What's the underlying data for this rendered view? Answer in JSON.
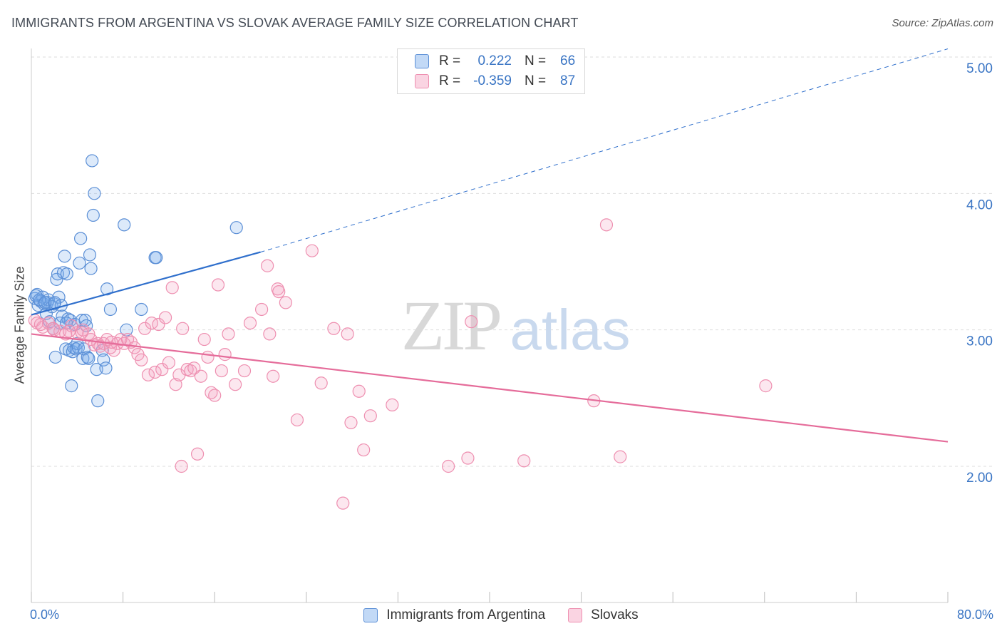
{
  "title": "IMMIGRANTS FROM ARGENTINA VS SLOVAK AVERAGE FAMILY SIZE CORRELATION CHART",
  "source": "Source: ZipAtlas.com",
  "watermark": {
    "zip": "ZIP",
    "atlas": "atlas"
  },
  "legend": {
    "rows": [
      {
        "r_label": "R =",
        "r_value": "0.222",
        "n_label": "N =",
        "n_value": "66"
      },
      {
        "r_label": "R =",
        "r_value": "-0.359",
        "n_label": "N =",
        "n_value": "87"
      }
    ]
  },
  "colors": {
    "blue_fill": "rgba(120,170,235,0.25)",
    "blue_stroke": "#5b8fd6",
    "blue_line": "#2f6fcc",
    "pink_fill": "rgba(245,160,190,0.25)",
    "pink_stroke": "#ee8fb0",
    "pink_line": "#e56c9a",
    "axis_text": "#3a75c4",
    "grid": "#dddddd"
  },
  "chart_data": {
    "type": "scatter",
    "title": "IMMIGRANTS FROM ARGENTINA VS SLOVAK AVERAGE FAMILY SIZE CORRELATION CHART",
    "xlabel": "",
    "ylabel": "Average Family Size",
    "xlim": [
      0,
      80
    ],
    "ylim": [
      1.0,
      5.15
    ],
    "x_tick_labels": [
      "0.0%",
      "80.0%"
    ],
    "y_ticks": [
      2.0,
      3.0,
      4.0,
      5.0
    ],
    "y_tick_labels": [
      "2.00",
      "3.00",
      "4.00",
      "5.00"
    ],
    "grid": "horizontal dashed",
    "legend_placement": "top-center",
    "series": [
      {
        "name": "Immigrants from Argentina",
        "color": "#5b8fd6",
        "r": 0.222,
        "n": 66,
        "trend": {
          "x": [
            0,
            20
          ],
          "y": [
            3.11,
            3.57
          ],
          "extend_to_x": 80,
          "extend_to_y": 5.06
        },
        "points": [
          [
            0.3,
            3.23
          ],
          [
            0.5,
            3.26
          ],
          [
            0.6,
            3.18
          ],
          [
            0.8,
            3.21
          ],
          [
            1.0,
            3.24
          ],
          [
            1.1,
            3.19
          ],
          [
            1.3,
            3.12
          ],
          [
            1.4,
            3.2
          ],
          [
            1.5,
            3.22
          ],
          [
            1.6,
            3.06
          ],
          [
            1.8,
            3.17
          ],
          [
            1.9,
            3.01
          ],
          [
            2.0,
            3.19
          ],
          [
            2.1,
            2.8
          ],
          [
            2.2,
            3.37
          ],
          [
            2.3,
            3.41
          ],
          [
            2.4,
            3.24
          ],
          [
            2.5,
            3.05
          ],
          [
            2.6,
            3.18
          ],
          [
            2.7,
            3.1
          ],
          [
            2.8,
            3.42
          ],
          [
            2.9,
            3.54
          ],
          [
            3.0,
            2.86
          ],
          [
            3.1,
            3.41
          ],
          [
            3.2,
            3.08
          ],
          [
            3.3,
            2.85
          ],
          [
            3.4,
            3.07
          ],
          [
            3.5,
            2.59
          ],
          [
            3.6,
            2.84
          ],
          [
            3.7,
            2.87
          ],
          [
            3.8,
            3.04
          ],
          [
            3.9,
            2.86
          ],
          [
            4.0,
            2.9
          ],
          [
            4.1,
            2.87
          ],
          [
            4.2,
            3.49
          ],
          [
            4.3,
            3.67
          ],
          [
            4.4,
            3.07
          ],
          [
            4.5,
            2.79
          ],
          [
            4.6,
            2.86
          ],
          [
            4.7,
            3.07
          ],
          [
            4.8,
            3.03
          ],
          [
            4.9,
            2.8
          ],
          [
            5.0,
            2.79
          ],
          [
            5.1,
            3.55
          ],
          [
            5.2,
            3.45
          ],
          [
            5.3,
            4.24
          ],
          [
            5.4,
            3.84
          ],
          [
            5.5,
            4.0
          ],
          [
            5.7,
            2.71
          ],
          [
            5.8,
            2.48
          ],
          [
            6.2,
            2.85
          ],
          [
            6.3,
            2.78
          ],
          [
            6.5,
            2.72
          ],
          [
            6.6,
            3.3
          ],
          [
            6.9,
            3.15
          ],
          [
            8.1,
            3.77
          ],
          [
            8.3,
            3.0
          ],
          [
            9.6,
            3.15
          ],
          [
            10.8,
            3.53
          ],
          [
            10.9,
            3.53
          ],
          [
            17.9,
            3.75
          ],
          [
            0.4,
            3.25
          ],
          [
            0.7,
            3.22
          ],
          [
            1.2,
            3.2
          ],
          [
            2.05,
            3.2
          ],
          [
            3.05,
            3.05
          ]
        ]
      },
      {
        "name": "Slovaks",
        "color": "#ee8fb0",
        "r": -0.359,
        "n": 87,
        "trend": {
          "x": [
            0,
            80
          ],
          "y": [
            2.97,
            2.18
          ]
        },
        "points": [
          [
            0.3,
            3.07
          ],
          [
            0.5,
            3.05
          ],
          [
            1.0,
            3.02
          ],
          [
            1.5,
            3.05
          ],
          [
            2.0,
            3.0
          ],
          [
            2.5,
            2.99
          ],
          [
            3.0,
            2.97
          ],
          [
            3.5,
            3.03
          ],
          [
            4.0,
            2.98
          ],
          [
            4.5,
            3.0
          ],
          [
            5.0,
            2.97
          ],
          [
            5.2,
            2.93
          ],
          [
            5.5,
            2.89
          ],
          [
            5.8,
            2.9
          ],
          [
            6.0,
            2.88
          ],
          [
            6.3,
            2.9
          ],
          [
            6.6,
            2.93
          ],
          [
            6.9,
            2.87
          ],
          [
            7.2,
            2.85
          ],
          [
            7.5,
            2.9
          ],
          [
            7.8,
            2.93
          ],
          [
            8.1,
            2.9
          ],
          [
            8.4,
            2.93
          ],
          [
            8.7,
            2.91
          ],
          [
            9.0,
            2.87
          ],
          [
            9.3,
            2.82
          ],
          [
            9.6,
            2.78
          ],
          [
            9.9,
            3.01
          ],
          [
            10.2,
            2.67
          ],
          [
            10.5,
            3.05
          ],
          [
            10.8,
            2.69
          ],
          [
            11.1,
            3.04
          ],
          [
            11.4,
            2.71
          ],
          [
            11.7,
            3.09
          ],
          [
            12.0,
            2.76
          ],
          [
            12.3,
            3.31
          ],
          [
            12.6,
            2.6
          ],
          [
            12.9,
            2.67
          ],
          [
            13.2,
            3.01
          ],
          [
            13.6,
            2.71
          ],
          [
            13.9,
            2.7
          ],
          [
            14.2,
            2.72
          ],
          [
            14.5,
            2.09
          ],
          [
            14.8,
            2.66
          ],
          [
            15.1,
            2.93
          ],
          [
            15.4,
            2.8
          ],
          [
            15.7,
            2.54
          ],
          [
            16.0,
            2.52
          ],
          [
            16.3,
            3.33
          ],
          [
            16.6,
            2.7
          ],
          [
            16.9,
            2.82
          ],
          [
            17.2,
            2.97
          ],
          [
            17.8,
            2.6
          ],
          [
            18.6,
            2.7
          ],
          [
            19.1,
            3.05
          ],
          [
            20.1,
            3.15
          ],
          [
            20.6,
            3.47
          ],
          [
            20.8,
            2.97
          ],
          [
            21.1,
            2.66
          ],
          [
            21.5,
            3.3
          ],
          [
            21.6,
            3.28
          ],
          [
            22.2,
            3.2
          ],
          [
            23.2,
            2.34
          ],
          [
            24.5,
            3.58
          ],
          [
            25.3,
            2.61
          ],
          [
            26.4,
            3.01
          ],
          [
            27.6,
            2.97
          ],
          [
            27.9,
            2.32
          ],
          [
            28.6,
            2.55
          ],
          [
            29.0,
            2.12
          ],
          [
            29.6,
            2.37
          ],
          [
            31.5,
            2.45
          ],
          [
            36.4,
            2.0
          ],
          [
            38.1,
            2.06
          ],
          [
            38.4,
            3.06
          ],
          [
            43.0,
            2.04
          ],
          [
            49.1,
            2.48
          ],
          [
            50.2,
            3.77
          ],
          [
            51.4,
            2.07
          ],
          [
            64.1,
            2.59
          ],
          [
            27.2,
            1.73
          ],
          [
            13.1,
            2.0
          ],
          [
            0.8,
            3.04
          ],
          [
            1.9,
            3.01
          ],
          [
            3.3,
            2.99
          ],
          [
            4.4,
            2.98
          ],
          [
            7.0,
            2.91
          ]
        ]
      }
    ]
  },
  "x_axis": {
    "left_label": "0.0%",
    "right_label": "80.0%"
  },
  "y_axis": {
    "label": "Average Family Size"
  },
  "bottom_legend": [
    {
      "label": "Immigrants from Argentina"
    },
    {
      "label": "Slovaks"
    }
  ]
}
